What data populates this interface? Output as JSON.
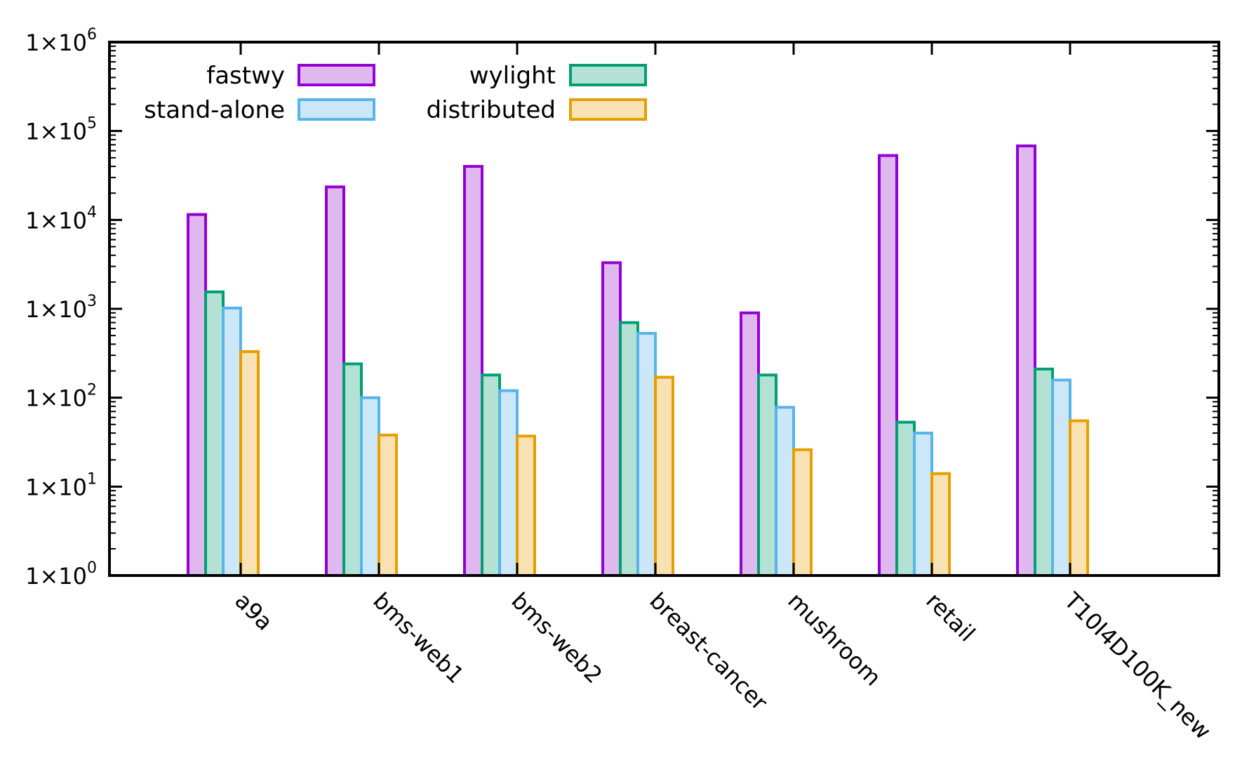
{
  "chart_data": {
    "type": "bar",
    "title": "",
    "xlabel": "",
    "ylabel": "",
    "yscale": "log",
    "ylim": [
      1,
      1000000
    ],
    "yticks": [
      {
        "base": "1×10",
        "exp": "0"
      },
      {
        "base": "1×10",
        "exp": "1"
      },
      {
        "base": "1×10",
        "exp": "2"
      },
      {
        "base": "1×10",
        "exp": "3"
      },
      {
        "base": "1×10",
        "exp": "4"
      },
      {
        "base": "1×10",
        "exp": "5"
      },
      {
        "base": "1×10",
        "exp": "6"
      }
    ],
    "categories": [
      "a9a",
      "bms-web1",
      "bms-web2",
      "breast-cancer",
      "mushroom",
      "retail",
      "T10I4D100K_new"
    ],
    "series": [
      {
        "name": "fastwy",
        "stroke": "#9400d3",
        "fill": "#e0b8f0",
        "values": [
          11500,
          23500,
          40000,
          3300,
          900,
          53000,
          68000
        ]
      },
      {
        "name": "wylight",
        "stroke": "#009e73",
        "fill": "#b3e2d5",
        "values": [
          1550,
          240,
          180,
          700,
          180,
          53,
          210
        ]
      },
      {
        "name": "stand-alone",
        "stroke": "#56b4e9",
        "fill": "#cce8f8",
        "values": [
          1020,
          100,
          120,
          530,
          78,
          40,
          158
        ]
      },
      {
        "name": "distributed",
        "stroke": "#e69f00",
        "fill": "#f8e2b3",
        "values": [
          330,
          38,
          37,
          170,
          26,
          14,
          55
        ]
      }
    ],
    "legend": {
      "placement": "top-left",
      "columns": 2
    },
    "grid": false
  }
}
